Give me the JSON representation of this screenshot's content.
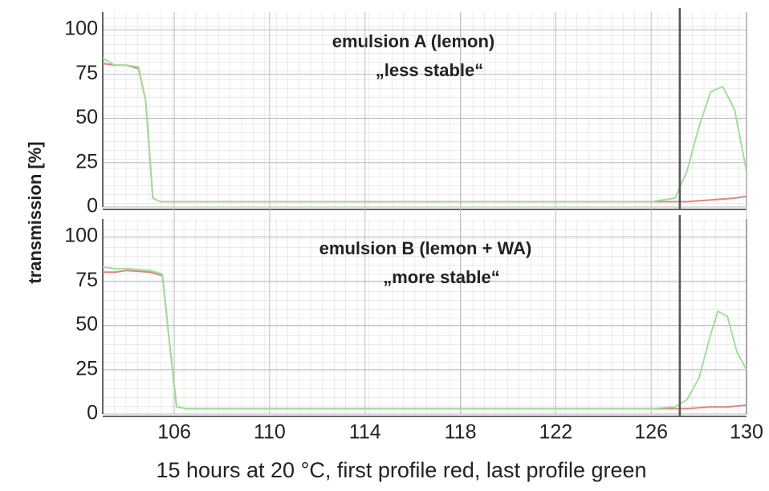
{
  "chart_data": [
    {
      "type": "line",
      "annotations": [
        "emulsion A (lemon)",
        "„less stable“"
      ],
      "ylabel": "transmission [%]",
      "x": [
        103,
        103.5,
        104,
        104.5,
        104.8,
        105.1,
        105.4,
        106,
        110,
        114,
        118,
        122,
        126,
        127,
        127.5,
        128,
        128.5,
        129,
        129.5,
        130
      ],
      "series": [
        {
          "color": "#d9897a",
          "values": [
            81,
            80,
            80,
            78,
            60,
            5,
            3,
            3,
            3,
            3,
            3,
            3,
            3,
            3,
            3,
            3.5,
            4,
            4.5,
            5,
            6
          ]
        },
        {
          "color": "#9fe09a",
          "values": [
            84,
            80,
            80,
            79,
            60,
            5,
            3,
            3,
            3,
            3,
            3,
            3,
            3,
            5,
            20,
            45,
            65,
            68,
            55,
            20
          ]
        }
      ],
      "xlim": [
        103,
        130
      ],
      "ylim": [
        0,
        110
      ],
      "yticks": [
        0,
        25,
        50,
        75,
        100
      ],
      "vline": 127.2,
      "grid": true
    },
    {
      "type": "line",
      "annotations": [
        "emulsion B (lemon + WA)",
        "„more stable“"
      ],
      "xlabel": "15 hours at 20 °C, first profile red, last profile green",
      "x": [
        103,
        103.5,
        104,
        105,
        105.5,
        105.8,
        106.1,
        106.5,
        110,
        114,
        118,
        122,
        126,
        127,
        127.5,
        128,
        128.5,
        128.8,
        129.2,
        129.6,
        130
      ],
      "series": [
        {
          "color": "#d9897a",
          "values": [
            80,
            80,
            81,
            80,
            78,
            40,
            4,
            3,
            3,
            3,
            3,
            3,
            3,
            3,
            3,
            3.5,
            4,
            4,
            4,
            4.5,
            5
          ]
        },
        {
          "color": "#9fe09a",
          "values": [
            83,
            82,
            82,
            81,
            79,
            40,
            4,
            3,
            3,
            3,
            3,
            3,
            3,
            4,
            8,
            20,
            45,
            58,
            55,
            35,
            25
          ]
        }
      ],
      "xlim": [
        103,
        130
      ],
      "ylim": [
        0,
        110
      ],
      "yticks": [
        0,
        25,
        50,
        75,
        100
      ],
      "xticks": [
        106,
        110,
        114,
        118,
        122,
        126,
        130
      ],
      "vline": 127.2,
      "grid": true
    }
  ]
}
